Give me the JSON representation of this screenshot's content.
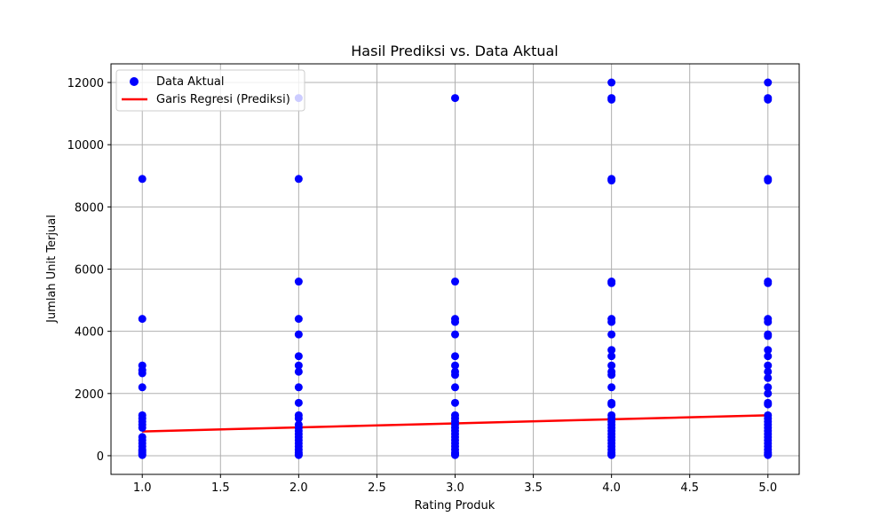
{
  "chart_data": {
    "type": "scatter",
    "title": "Hasil Prediksi vs. Data Aktual",
    "xlabel": "Rating Produk",
    "ylabel": "Jumlah Unit Terjual",
    "xlim": [
      0.8,
      5.2
    ],
    "ylim": [
      -600,
      12600
    ],
    "xticks": [
      "1.0",
      "1.5",
      "2.0",
      "2.5",
      "3.0",
      "3.5",
      "4.0",
      "4.5",
      "5.0"
    ],
    "yticks": [
      "0",
      "2000",
      "4000",
      "6000",
      "8000",
      "10000",
      "12000"
    ],
    "grid": true,
    "legend_position": "top-left",
    "series": [
      {
        "name": "Data Aktual",
        "kind": "scatter",
        "color": "#0000ff",
        "points": [
          {
            "x": 1,
            "y": 8900
          },
          {
            "x": 1,
            "y": 4400
          },
          {
            "x": 1,
            "y": 2900
          },
          {
            "x": 1,
            "y": 2750
          },
          {
            "x": 1,
            "y": 2650
          },
          {
            "x": 1,
            "y": 2200
          },
          {
            "x": 1,
            "y": 1300
          },
          {
            "x": 1,
            "y": 1200
          },
          {
            "x": 1,
            "y": 1100
          },
          {
            "x": 1,
            "y": 1000
          },
          {
            "x": 1,
            "y": 900
          },
          {
            "x": 1,
            "y": 600
          },
          {
            "x": 1,
            "y": 500
          },
          {
            "x": 1,
            "y": 400
          },
          {
            "x": 1,
            "y": 300
          },
          {
            "x": 1,
            "y": 200
          },
          {
            "x": 1,
            "y": 150
          },
          {
            "x": 1,
            "y": 100
          },
          {
            "x": 1,
            "y": 50
          },
          {
            "x": 1,
            "y": 20
          },
          {
            "x": 2,
            "y": 11500
          },
          {
            "x": 2,
            "y": 8900
          },
          {
            "x": 2,
            "y": 5600
          },
          {
            "x": 2,
            "y": 4400
          },
          {
            "x": 2,
            "y": 3900
          },
          {
            "x": 2,
            "y": 3200
          },
          {
            "x": 2,
            "y": 2900
          },
          {
            "x": 2,
            "y": 2700
          },
          {
            "x": 2,
            "y": 2200
          },
          {
            "x": 2,
            "y": 1700
          },
          {
            "x": 2,
            "y": 1300
          },
          {
            "x": 2,
            "y": 1200
          },
          {
            "x": 2,
            "y": 1000
          },
          {
            "x": 2,
            "y": 900
          },
          {
            "x": 2,
            "y": 800
          },
          {
            "x": 2,
            "y": 700
          },
          {
            "x": 2,
            "y": 600
          },
          {
            "x": 2,
            "y": 500
          },
          {
            "x": 2,
            "y": 400
          },
          {
            "x": 2,
            "y": 300
          },
          {
            "x": 2,
            "y": 200
          },
          {
            "x": 2,
            "y": 100
          },
          {
            "x": 2,
            "y": 50
          },
          {
            "x": 2,
            "y": 20
          },
          {
            "x": 3,
            "y": 11500
          },
          {
            "x": 3,
            "y": 5600
          },
          {
            "x": 3,
            "y": 4400
          },
          {
            "x": 3,
            "y": 4300
          },
          {
            "x": 3,
            "y": 3900
          },
          {
            "x": 3,
            "y": 3200
          },
          {
            "x": 3,
            "y": 2900
          },
          {
            "x": 3,
            "y": 2700
          },
          {
            "x": 3,
            "y": 2600
          },
          {
            "x": 3,
            "y": 2200
          },
          {
            "x": 3,
            "y": 1700
          },
          {
            "x": 3,
            "y": 1300
          },
          {
            "x": 3,
            "y": 1200
          },
          {
            "x": 3,
            "y": 1100
          },
          {
            "x": 3,
            "y": 1000
          },
          {
            "x": 3,
            "y": 900
          },
          {
            "x": 3,
            "y": 800
          },
          {
            "x": 3,
            "y": 700
          },
          {
            "x": 3,
            "y": 600
          },
          {
            "x": 3,
            "y": 500
          },
          {
            "x": 3,
            "y": 400
          },
          {
            "x": 3,
            "y": 300
          },
          {
            "x": 3,
            "y": 200
          },
          {
            "x": 3,
            "y": 100
          },
          {
            "x": 3,
            "y": 50
          },
          {
            "x": 3,
            "y": 20
          },
          {
            "x": 4,
            "y": 12000
          },
          {
            "x": 4,
            "y": 11500
          },
          {
            "x": 4,
            "y": 11450
          },
          {
            "x": 4,
            "y": 8900
          },
          {
            "x": 4,
            "y": 8850
          },
          {
            "x": 4,
            "y": 5600
          },
          {
            "x": 4,
            "y": 5550
          },
          {
            "x": 4,
            "y": 4400
          },
          {
            "x": 4,
            "y": 4300
          },
          {
            "x": 4,
            "y": 3900
          },
          {
            "x": 4,
            "y": 3400
          },
          {
            "x": 4,
            "y": 3200
          },
          {
            "x": 4,
            "y": 2900
          },
          {
            "x": 4,
            "y": 2700
          },
          {
            "x": 4,
            "y": 2600
          },
          {
            "x": 4,
            "y": 2200
          },
          {
            "x": 4,
            "y": 1700
          },
          {
            "x": 4,
            "y": 1650
          },
          {
            "x": 4,
            "y": 1300
          },
          {
            "x": 4,
            "y": 1200
          },
          {
            "x": 4,
            "y": 1100
          },
          {
            "x": 4,
            "y": 1000
          },
          {
            "x": 4,
            "y": 900
          },
          {
            "x": 4,
            "y": 800
          },
          {
            "x": 4,
            "y": 700
          },
          {
            "x": 4,
            "y": 600
          },
          {
            "x": 4,
            "y": 500
          },
          {
            "x": 4,
            "y": 400
          },
          {
            "x": 4,
            "y": 300
          },
          {
            "x": 4,
            "y": 200
          },
          {
            "x": 4,
            "y": 100
          },
          {
            "x": 4,
            "y": 50
          },
          {
            "x": 4,
            "y": 20
          },
          {
            "x": 5,
            "y": 12000
          },
          {
            "x": 5,
            "y": 11500
          },
          {
            "x": 5,
            "y": 11450
          },
          {
            "x": 5,
            "y": 8900
          },
          {
            "x": 5,
            "y": 8850
          },
          {
            "x": 5,
            "y": 5600
          },
          {
            "x": 5,
            "y": 5550
          },
          {
            "x": 5,
            "y": 4400
          },
          {
            "x": 5,
            "y": 4300
          },
          {
            "x": 5,
            "y": 3900
          },
          {
            "x": 5,
            "y": 3850
          },
          {
            "x": 5,
            "y": 3400
          },
          {
            "x": 5,
            "y": 3200
          },
          {
            "x": 5,
            "y": 2900
          },
          {
            "x": 5,
            "y": 2700
          },
          {
            "x": 5,
            "y": 2500
          },
          {
            "x": 5,
            "y": 2200
          },
          {
            "x": 5,
            "y": 2000
          },
          {
            "x": 5,
            "y": 1700
          },
          {
            "x": 5,
            "y": 1650
          },
          {
            "x": 5,
            "y": 1300
          },
          {
            "x": 5,
            "y": 1200
          },
          {
            "x": 5,
            "y": 1100
          },
          {
            "x": 5,
            "y": 1000
          },
          {
            "x": 5,
            "y": 900
          },
          {
            "x": 5,
            "y": 800
          },
          {
            "x": 5,
            "y": 700
          },
          {
            "x": 5,
            "y": 600
          },
          {
            "x": 5,
            "y": 500
          },
          {
            "x": 5,
            "y": 400
          },
          {
            "x": 5,
            "y": 300
          },
          {
            "x": 5,
            "y": 200
          },
          {
            "x": 5,
            "y": 100
          },
          {
            "x": 5,
            "y": 50
          },
          {
            "x": 5,
            "y": 20
          }
        ]
      },
      {
        "name": "Garis Regresi (Prediksi)",
        "kind": "line",
        "color": "#ff0000",
        "points": [
          {
            "x": 1,
            "y": 780
          },
          {
            "x": 5,
            "y": 1300
          }
        ]
      }
    ]
  }
}
